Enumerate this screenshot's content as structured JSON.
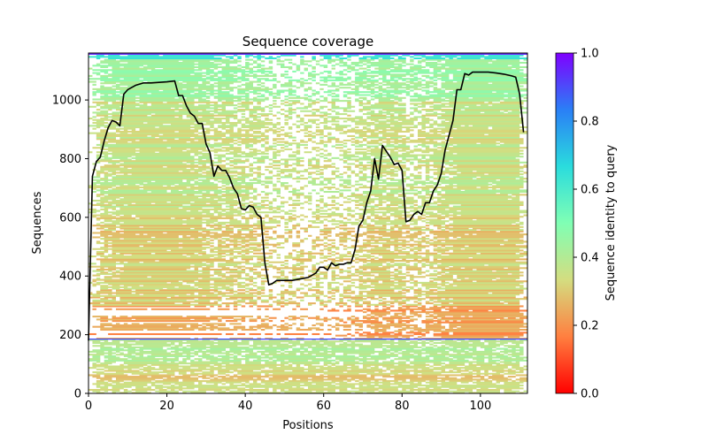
{
  "chart_data": {
    "type": "heatmap",
    "title": "Sequence coverage",
    "xlabel": "Positions",
    "ylabel": "Sequences",
    "xlim": [
      0,
      112
    ],
    "ylim": [
      0,
      1160
    ],
    "x_ticks": [
      0,
      20,
      40,
      60,
      80,
      100
    ],
    "y_ticks": [
      0,
      200,
      400,
      600,
      800,
      1000
    ],
    "n_positions": 112,
    "n_sequences": 1160,
    "separator_row": 185,
    "colorbar": {
      "label": "Sequence identity to query",
      "range": [
        0.0,
        1.0
      ],
      "ticks": [
        0.0,
        0.2,
        0.4,
        0.6,
        0.8,
        1.0
      ],
      "colormap": "rainbow_r",
      "stops": [
        "#ff0000",
        "#ff7f40",
        "#d4dd80",
        "#80ffb4",
        "#2adcdd",
        "#2a7ff6",
        "#7f00ff"
      ]
    },
    "coverage_line": {
      "name": "coverage",
      "color": "#000000",
      "x": [
        0,
        1,
        2,
        3,
        4,
        5,
        6,
        7,
        8,
        9,
        10,
        12,
        14,
        16,
        18,
        20,
        22,
        23,
        24,
        25,
        26,
        27,
        28,
        29,
        30,
        31,
        32,
        33,
        34,
        35,
        36,
        37,
        38,
        39,
        40,
        41,
        42,
        43,
        44,
        45,
        46,
        47,
        48,
        49,
        50,
        52,
        54,
        56,
        58,
        59,
        60,
        61,
        62,
        63,
        64,
        65,
        66,
        67,
        68,
        69,
        70,
        71,
        72,
        73,
        74,
        75,
        76,
        77,
        78,
        79,
        80,
        81,
        82,
        83,
        84,
        85,
        86,
        87,
        88,
        89,
        90,
        91,
        92,
        93,
        94,
        95,
        96,
        97,
        98,
        100,
        102,
        104,
        106,
        108,
        109,
        110,
        111
      ],
      "y": [
        180,
        740,
        790,
        805,
        860,
        905,
        930,
        925,
        912,
        1020,
        1035,
        1050,
        1058,
        1058,
        1060,
        1062,
        1065,
        1015,
        1015,
        980,
        955,
        945,
        920,
        920,
        850,
        820,
        740,
        775,
        760,
        760,
        735,
        700,
        680,
        630,
        625,
        640,
        635,
        610,
        600,
        445,
        370,
        375,
        385,
        385,
        385,
        385,
        390,
        395,
        410,
        430,
        430,
        420,
        445,
        435,
        440,
        440,
        445,
        445,
        490,
        570,
        590,
        650,
        690,
        800,
        730,
        845,
        825,
        805,
        780,
        785,
        760,
        585,
        590,
        610,
        620,
        610,
        650,
        650,
        690,
        710,
        750,
        830,
        880,
        930,
        1035,
        1035,
        1090,
        1085,
        1095,
        1095,
        1095,
        1092,
        1088,
        1082,
        1078,
        1020,
        890
      ]
    }
  }
}
